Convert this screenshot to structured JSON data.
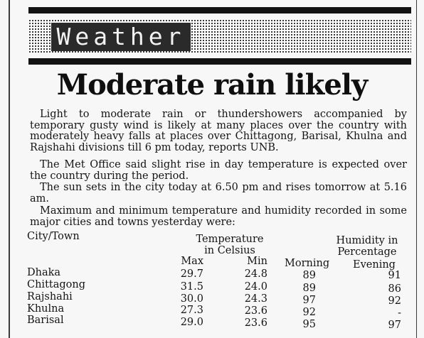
{
  "section": {
    "title": "Weather"
  },
  "headline": "Moderate rain likely",
  "paragraphs": [
    "Light to moderate rain or thundershowers accompanied by temporary gusty wind is likely at many places over the country with moderately heavy falls at places over Chittagong, Barisal, Khulna and Rajshahi divisions till 6 pm today, reports UNB.",
    "The Met Office said slight rise in day temperature is expected over the country during the period.",
    "The sun sets in the city today at 6.50 pm and rises tomorrow at 5.16 am.",
    "Maximum and minimum temperature and humidity recorded in some major cities and towns yesterday were:"
  ],
  "table": {
    "city_header": "City/Town",
    "temp_header_1": "Temperature",
    "temp_header_2": "in Celsius",
    "hum_header_1": "Humidity in",
    "hum_header_2": "Percentage",
    "col_max": "Max",
    "col_min": "Min",
    "col_morning": "Morning",
    "col_evening": "Evening",
    "rows": [
      {
        "city": "Dhaka",
        "max": "29.7",
        "min": "24.8",
        "morning": "89",
        "evening": "91"
      },
      {
        "city": "Chittagong",
        "max": "31.5",
        "min": "24.0",
        "morning": "89",
        "evening": "86"
      },
      {
        "city": "Rajshahi",
        "max": "30.0",
        "min": "24.3",
        "morning": "97",
        "evening": "92"
      },
      {
        "city": "Khulna",
        "max": "27.3",
        "min": "23.6",
        "morning": "92",
        "evening": "-"
      },
      {
        "city": "Barisal",
        "max": "29.0",
        "min": "23.6",
        "morning": "95",
        "evening": "97"
      }
    ]
  }
}
